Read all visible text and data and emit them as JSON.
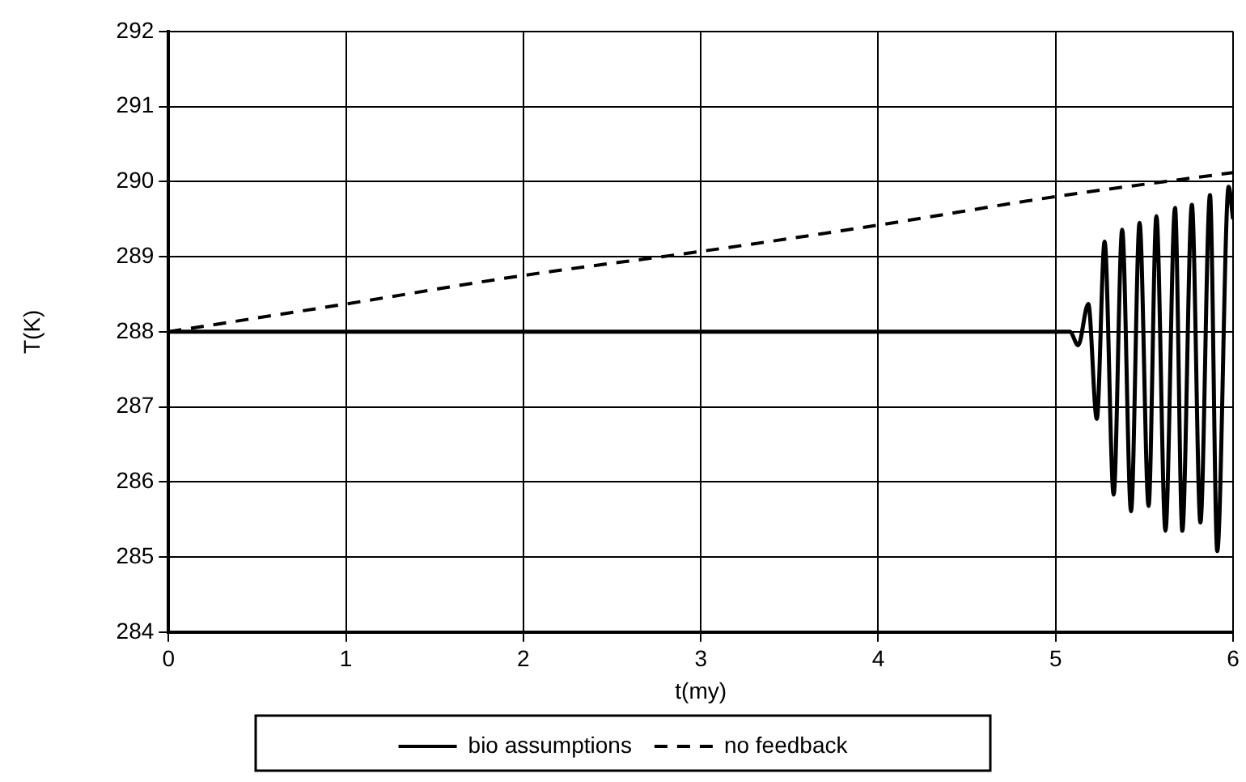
{
  "chart_data": {
    "type": "line",
    "xlabel": "t(my)",
    "ylabel": "T(K)",
    "xlim": [
      0,
      6
    ],
    "xticks": [
      0,
      1,
      2,
      3,
      4,
      5,
      6
    ],
    "ylim": [
      284,
      292
    ],
    "yticks": [
      284,
      285,
      286,
      287,
      288,
      289,
      290,
      291,
      292
    ],
    "grid": true,
    "legend": "bottom",
    "marker": "none",
    "series": [
      {
        "name": "bio assumptions",
        "color": "#000000",
        "line_style": "solid",
        "x": [
          0,
          1,
          2,
          3,
          4,
          5,
          5.08,
          5.127,
          5.184,
          5.232,
          5.276,
          5.327,
          5.375,
          5.425,
          5.473,
          5.524,
          5.568,
          5.619,
          5.673,
          5.714,
          5.768,
          5.816,
          5.87,
          5.911,
          5.975,
          6
        ],
        "values": [
          288,
          288,
          288,
          288,
          288,
          288,
          288,
          287.82,
          288.37,
          286.84,
          289.2,
          285.83,
          289.36,
          285.61,
          289.45,
          285.68,
          289.54,
          285.35,
          289.65,
          285.35,
          289.69,
          285.46,
          289.82,
          285.08,
          289.93,
          289.5
        ]
      },
      {
        "name": "no feedback",
        "color": "#000000",
        "line_style": "dashed",
        "x": [
          0,
          1,
          2,
          3,
          4,
          5,
          6
        ],
        "values": [
          288,
          288.37,
          288.75,
          289.07,
          289.42,
          289.8,
          290.12
        ]
      }
    ]
  }
}
